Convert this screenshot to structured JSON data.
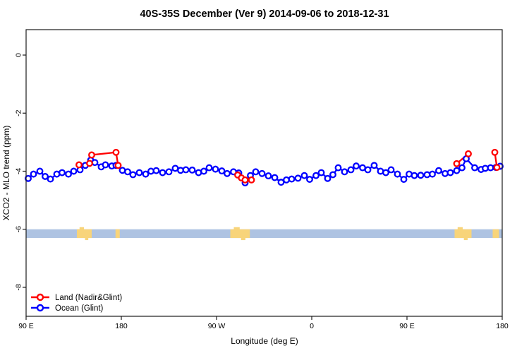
{
  "chart_data": {
    "type": "line",
    "title": "40S-35S December (Ver 9)   2014-09-06 to 2018-12-31",
    "xlabel": "Longitude (deg E)",
    "ylabel": "XCO2 - MLO trend (ppm)",
    "grid": false,
    "x_axis": {
      "range_axis_deg": [
        90,
        540
      ],
      "ticks": [
        {
          "deg": 90,
          "label": "90 E"
        },
        {
          "deg": 180,
          "label": "180"
        },
        {
          "deg": 270,
          "label": "90 W"
        },
        {
          "deg": 360,
          "label": "0"
        },
        {
          "deg": 450,
          "label": "90 E"
        },
        {
          "deg": 540,
          "label": "180"
        }
      ]
    },
    "y_axis": {
      "range_ppm": [
        -9.0,
        0.9
      ],
      "ticks": [
        {
          "value": 0,
          "label": "0"
        },
        {
          "value": -2,
          "label": "-2"
        },
        {
          "value": -4,
          "label": "-4"
        },
        {
          "value": -6,
          "label": "-6"
        },
        {
          "value": -8,
          "label": "-8"
        }
      ]
    },
    "map_band": {
      "description": "latitude-strip map: ocean band with land patches",
      "band_ppm": [
        -6.0,
        -6.3
      ],
      "ocean_color": "#aec3e2",
      "land_color": "#f8d47a",
      "land_patches_axis_deg": [
        [
          138,
          152
        ],
        [
          174.5,
          178.5
        ],
        [
          283,
          301.5
        ],
        [
          495,
          511
        ],
        [
          531,
          537
        ]
      ]
    },
    "legend": {
      "position": "bottom-left",
      "entries": [
        {
          "label": "Land (Nadir&Glint)",
          "color": "#ff0000"
        },
        {
          "label": "Ocean (Glint)",
          "color": "#0000ff"
        }
      ]
    },
    "series": [
      {
        "name": "Ocean (Glint)",
        "color": "#0000ff",
        "marker": "open-circle",
        "segments": [
          [
            [
              92,
              -4.25
            ],
            [
              97,
              -4.1
            ],
            [
              103,
              -4.0
            ],
            [
              108,
              -4.18
            ],
            [
              113,
              -4.27
            ],
            [
              119,
              -4.1
            ],
            [
              124,
              -4.05
            ],
            [
              130,
              -4.1
            ],
            [
              135,
              -4.0
            ],
            [
              141,
              -3.95
            ],
            [
              146,
              -3.8
            ],
            [
              151,
              -3.62
            ],
            [
              155,
              -3.7
            ],
            [
              161,
              -3.85
            ],
            [
              165,
              -3.78
            ],
            [
              171,
              -3.82
            ],
            [
              175,
              -3.8
            ],
            [
              181,
              -3.97
            ],
            [
              186,
              -4.02
            ],
            [
              191,
              -4.12
            ],
            [
              197,
              -4.05
            ],
            [
              203,
              -4.1
            ],
            [
              208,
              -4.0
            ],
            [
              213,
              -3.98
            ],
            [
              219,
              -4.05
            ],
            [
              225,
              -4.02
            ],
            [
              231,
              -3.9
            ],
            [
              236,
              -3.97
            ],
            [
              241,
              -3.95
            ],
            [
              247,
              -3.96
            ],
            [
              253,
              -4.05
            ],
            [
              258,
              -4.0
            ],
            [
              263,
              -3.88
            ],
            [
              269,
              -3.93
            ],
            [
              275,
              -3.99
            ],
            [
              280,
              -4.08
            ],
            [
              286,
              -4.02
            ],
            [
              291,
              -4.06
            ],
            [
              297,
              -4.4
            ],
            [
              302,
              -4.15
            ],
            [
              307,
              -4.02
            ],
            [
              313,
              -4.08
            ],
            [
              319,
              -4.16
            ],
            [
              325,
              -4.22
            ],
            [
              331,
              -4.38
            ],
            [
              336,
              -4.3
            ],
            [
              341,
              -4.27
            ],
            [
              347,
              -4.24
            ],
            [
              353,
              -4.15
            ],
            [
              358,
              -4.28
            ],
            [
              364,
              -4.15
            ],
            [
              369,
              -4.05
            ],
            [
              375,
              -4.25
            ],
            [
              380,
              -4.12
            ],
            [
              385,
              -3.88
            ],
            [
              391,
              -4.02
            ],
            [
              397,
              -3.95
            ],
            [
              402,
              -3.82
            ],
            [
              408,
              -3.88
            ],
            [
              413,
              -3.95
            ],
            [
              419,
              -3.8
            ],
            [
              425,
              -4.0
            ],
            [
              430,
              -4.05
            ],
            [
              435,
              -3.95
            ],
            [
              441,
              -4.1
            ],
            [
              447,
              -4.28
            ],
            [
              452,
              -4.1
            ],
            [
              457,
              -4.15
            ],
            [
              463,
              -4.14
            ],
            [
              469,
              -4.12
            ],
            [
              474,
              -4.1
            ],
            [
              480,
              -3.98
            ],
            [
              486,
              -4.08
            ],
            [
              491,
              -4.05
            ],
            [
              497,
              -3.98
            ],
            [
              502,
              -3.88
            ],
            [
              506,
              -3.57
            ],
            [
              514,
              -3.88
            ],
            [
              520,
              -3.94
            ],
            [
              524,
              -3.9
            ],
            [
              529,
              -3.88
            ],
            [
              534,
              -3.87
            ],
            [
              538,
              -3.83
            ]
          ]
        ]
      },
      {
        "name": "Land (Nadir&Glint)",
        "color": "#ff0000",
        "marker": "open-circle",
        "segments": [
          [
            [
              140,
              -3.78
            ],
            [
              150,
              -3.73
            ],
            [
              152,
              -3.44
            ],
            [
              175,
              -3.35
            ],
            [
              177,
              -3.8
            ]
          ],
          [
            [
              290,
              -4.13
            ],
            [
              293.5,
              -4.23
            ],
            [
              297,
              -4.3
            ],
            [
              303,
              -4.3
            ]
          ],
          [
            [
              497,
              -3.74
            ],
            [
              508,
              -3.4
            ]
          ],
          [
            [
              533,
              -3.35
            ],
            [
              535,
              -3.87
            ]
          ]
        ]
      }
    ]
  }
}
